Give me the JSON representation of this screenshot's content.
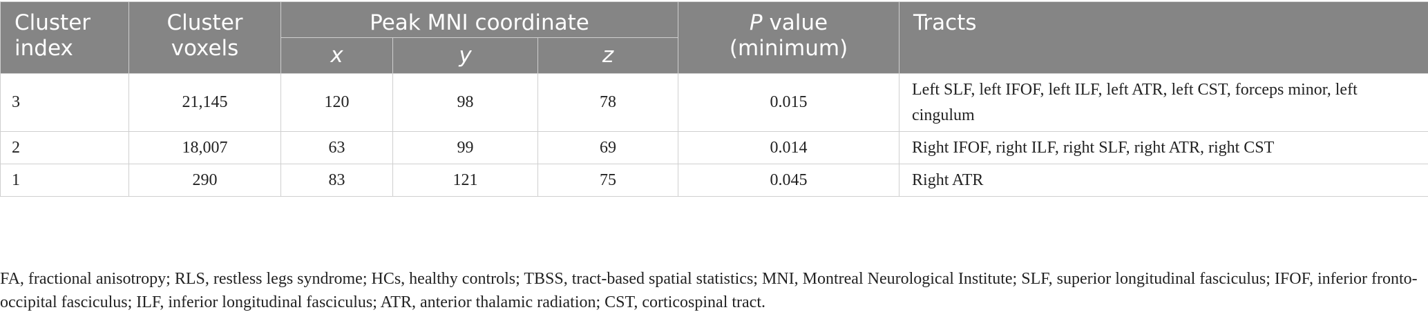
{
  "table": {
    "headers": {
      "cluster_index": "Cluster index",
      "cluster_voxels": "Cluster voxels",
      "peak_mni": "Peak MNI coordinate",
      "x": "x",
      "y": "y",
      "z": "z",
      "p_value_italic": "P",
      "p_value_rest": " value (minimum)",
      "tracts": "Tracts"
    },
    "rows": [
      {
        "cluster_index": "3",
        "cluster_voxels": "21,145",
        "x": "120",
        "y": "98",
        "z": "78",
        "p_value": "0.015",
        "tracts": "Left SLF, left IFOF, left ILF, left ATR, left CST, forceps minor, left cingulum"
      },
      {
        "cluster_index": "2",
        "cluster_voxels": "18,007",
        "x": "63",
        "y": "99",
        "z": "69",
        "p_value": "0.014",
        "tracts": "Right IFOF, right ILF, right SLF, right ATR, right CST"
      },
      {
        "cluster_index": "1",
        "cluster_voxels": "290",
        "x": "83",
        "y": "121",
        "z": "75",
        "p_value": "0.045",
        "tracts": "Right ATR"
      }
    ]
  },
  "footnote": "FA, fractional anisotropy; RLS, restless legs syndrome; HCs, healthy controls; TBSS, tract-based spatial statistics; MNI, Montreal Neurological Institute; SLF, superior longitudinal fasciculus; IFOF, inferior fronto-occipital fasciculus; ILF, inferior longitudinal fasciculus; ATR, anterior thalamic radiation; CST, corticospinal tract.",
  "colors": {
    "header_background": "#858585",
    "header_text": "#ffffff",
    "border": "#cfcfcf",
    "body_text": "#222222"
  }
}
